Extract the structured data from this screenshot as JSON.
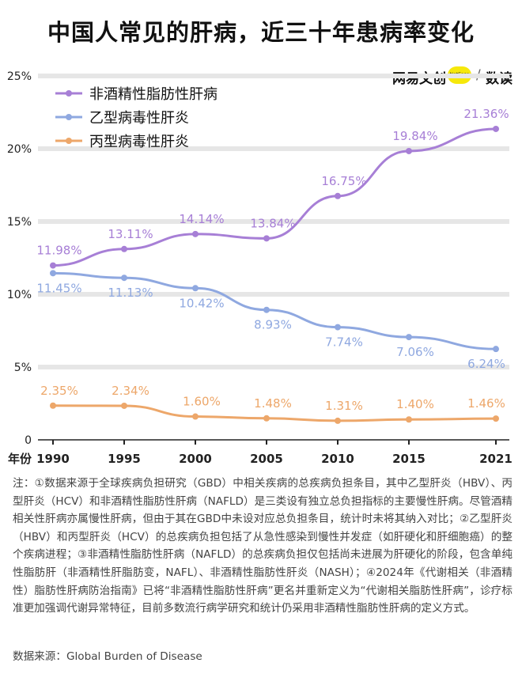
{
  "title": "中国人常见的肝病，近三十年患病率变化",
  "brand": {
    "name": "网易文创",
    "badge": "NetEase",
    "separator": "/",
    "column": "数读"
  },
  "chart_data": {
    "type": "line",
    "x": [
      1990,
      1995,
      2000,
      2005,
      2010,
      2015,
      2021
    ],
    "x_ticks": [
      "1990",
      "1995",
      "2000",
      "2005",
      "2010",
      "2015",
      "2021"
    ],
    "x_title": "年份",
    "y_ticks": [
      "0",
      "5%",
      "10%",
      "15%",
      "20%",
      "25%"
    ],
    "ylim": [
      0,
      25
    ],
    "legend_position": "top-left",
    "series": [
      {
        "name": "非酒精性脂肪性肝病",
        "color": "#a77fd6",
        "values": [
          11.98,
          13.11,
          14.14,
          13.84,
          16.75,
          19.84,
          21.36
        ],
        "labels": [
          "11.98%",
          "13.11%",
          "14.14%",
          "13.84%",
          "16.75%",
          "19.84%",
          "21.36%"
        ]
      },
      {
        "name": "乙型病毒性肝炎",
        "color": "#8fa8e0",
        "values": [
          11.45,
          11.13,
          10.42,
          8.93,
          7.74,
          7.06,
          6.24
        ],
        "labels": [
          "11.45%",
          "11.13%",
          "10.42%",
          "8.93%",
          "7.74%",
          "7.06%",
          "6.24%"
        ]
      },
      {
        "name": "丙型病毒性肝炎",
        "color": "#eda76a",
        "values": [
          2.35,
          2.34,
          1.6,
          1.48,
          1.31,
          1.4,
          1.46
        ],
        "labels": [
          "2.35%",
          "2.34%",
          "1.60%",
          "1.48%",
          "1.31%",
          "1.40%",
          "1.46%"
        ]
      }
    ]
  },
  "note": "注：①数据来源于全球疾病负担研究（GBD）中相关疾病的总疾病负担条目，其中乙型肝炎（HBV）、丙型肝炎（HCV）和非酒精性脂肪性肝病（NAFLD）是三类设有独立总负担指标的主要慢性肝病。尽管酒精相关性肝病亦属慢性肝病，但由于其在GBD中未设对应总负担条目，统计时未将其纳入对比；②乙型肝炎（HBV）和丙型肝炎（HCV）的总疾病负担包括了从急性感染到慢性并发症（如肝硬化和肝细胞癌）的整个疾病进程；③非酒精性脂肪性肝病（NAFLD）的总疾病负担仅包括尚未进展为肝硬化的阶段，包含单纯性脂肪肝（非酒精性肝脂肪变，NAFL）、非酒精性脂肪性肝炎（NASH）；④2024年《代谢相关（非酒精性）脂肪性肝病防治指南》已将“非酒精性脂肪性肝病”更名并重新定义为“代谢相关脂肪性肝病”，诊疗标准更加强调代谢异常特征，目前多数流行病学研究和统计仍采用非酒精性脂肪性肝病的定义方式。",
  "source": "数据来源：Global Burden of Disease"
}
